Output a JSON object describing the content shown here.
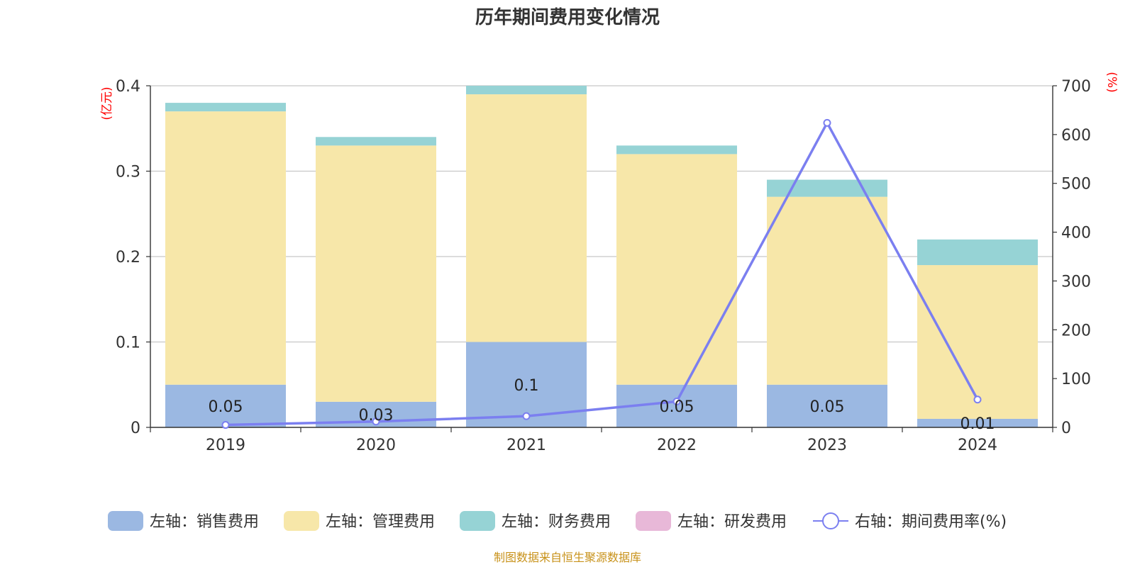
{
  "chart_data": {
    "type": "bar",
    "title": "历年期间费用变化情况",
    "categories": [
      "2019",
      "2020",
      "2021",
      "2022",
      "2023",
      "2024"
    ],
    "left_axis": {
      "unit": "(亿元)",
      "ylim": [
        0,
        0.4
      ],
      "ticks": [
        "0",
        "0.1",
        "0.2",
        "0.3",
        "0.4"
      ]
    },
    "right_axis": {
      "unit": "(%)",
      "ylim": [
        0,
        700
      ],
      "ticks": [
        "0",
        "100",
        "200",
        "300",
        "400",
        "500",
        "600",
        "700"
      ]
    },
    "series": [
      {
        "name": "左轴：销售费用",
        "type": "bar",
        "stack": "total",
        "color": "#9bb8e2",
        "values": [
          0.05,
          0.03,
          0.1,
          0.05,
          0.05,
          0.01
        ],
        "labels": [
          "0.05",
          "0.03",
          "0.1",
          "0.05",
          "0.05",
          "0.01"
        ]
      },
      {
        "name": "左轴：管理费用",
        "type": "bar",
        "stack": "total",
        "color": "#f7e7a9",
        "values": [
          0.32,
          0.3,
          0.29,
          0.27,
          0.22,
          0.18
        ]
      },
      {
        "name": "左轴：财务费用",
        "type": "bar",
        "stack": "total",
        "color": "#96d3d5",
        "values": [
          0.01,
          0.01,
          0.01,
          0.01,
          0.02,
          0.03
        ]
      },
      {
        "name": "左轴：研发费用",
        "type": "bar",
        "stack": "total",
        "color": "#e8b8d8",
        "values": [
          0,
          0,
          0,
          0,
          0,
          0
        ]
      },
      {
        "name": "右轴：期间费用率(%)",
        "type": "line",
        "axis": "right",
        "color": "#7b7ff0",
        "values": [
          5,
          12,
          23,
          53,
          624,
          57
        ]
      }
    ],
    "grid": true,
    "legend_position": "bottom"
  },
  "source_note": "制图数据来自恒生聚源数据库"
}
